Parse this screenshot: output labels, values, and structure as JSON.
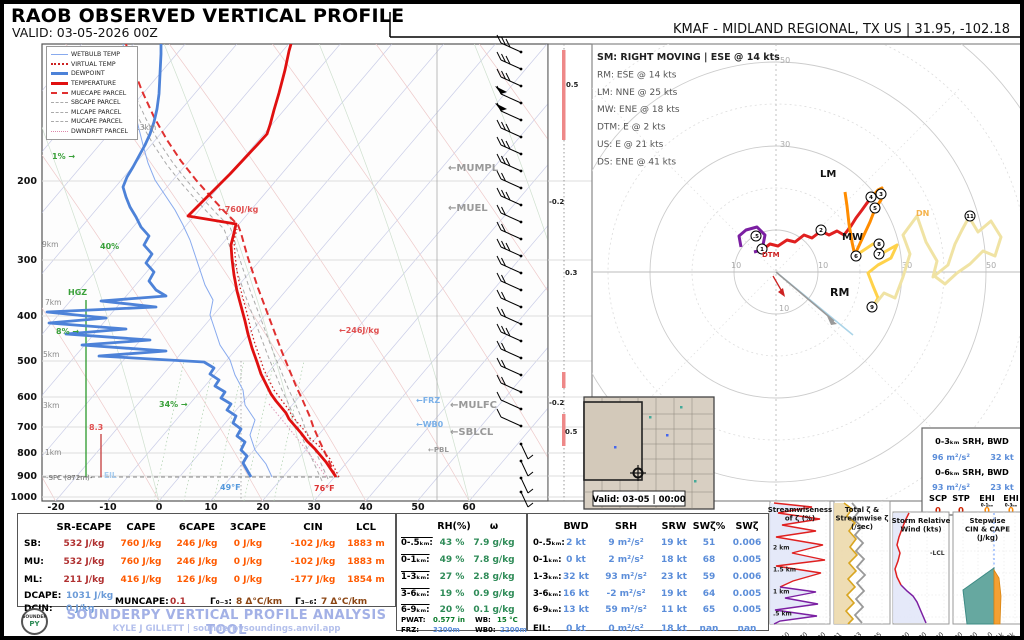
{
  "header": {
    "title": "RAOB OBSERVED VERTICAL PROFILE",
    "valid": "VALID: 03-05-2026 00Z",
    "station": "KMAF - MIDLAND REGIONAL, TX US | 31.95, -102.18"
  },
  "legend": {
    "items": [
      "WETBULB TEMP",
      "VIRTUAL TEMP",
      "DEWPOINT",
      "TEMPERATURE",
      "MUECAPE PARCEL",
      "SBCAPE PARCEL",
      "MLCAPE PARCEL",
      "MUCAPE PARCEL",
      "DWNDRFT PARCEL"
    ]
  },
  "skewt": {
    "pressure_ticks": [
      "200",
      "300",
      "400",
      "500",
      "600",
      "700",
      "800",
      "900",
      "1000"
    ],
    "temp_ticks": [
      "-20",
      "-10",
      "0",
      "10",
      "20",
      "30",
      "40",
      "50",
      "60"
    ],
    "height_labels": [
      "13km",
      "9km",
      "7km",
      "5km",
      "3km",
      "1km"
    ],
    "surface_label": "-SFC (872m)-",
    "eil_label": "EIL",
    "omega_labels": [
      "0.5",
      "-0.2",
      "0.3",
      "-0.2",
      "0.5"
    ],
    "annotations": {
      "rh1": "1% →",
      "rh40": "40%",
      "rh8": "8% →",
      "rh34": "34% →",
      "hgz": "HGZ",
      "dcape": "8.3",
      "mumpl": "←MUMPL",
      "muel": "←MUEL",
      "mulfc": "←MULFC",
      "sblcl": "←SBLCL",
      "frz": "←FRZ",
      "wb0": "←WB0",
      "pbl": "←PBL",
      "cape_total": "←760J/kg",
      "cape_6": "←246J/kg",
      "sfc_t": "76°F",
      "sfc_td": "49°F"
    }
  },
  "hodograph": {
    "info_lines": [
      "SM: RIGHT MOVING | ESE @ 14 kts",
      "RM: ESE @ 14 kts",
      "LM: NNE @ 25 kts",
      "MW: ENE @ 18 kts",
      "DTM: E @ 2 kts",
      "US: E @ 21 kts",
      "DS: ENE @ 41 kts"
    ],
    "ring_labels": [
      "50",
      "30",
      "10",
      "10",
      "30",
      "50",
      "10"
    ],
    "markers": [
      ".5",
      "1",
      "2",
      "3",
      "4",
      "5",
      "6",
      "7",
      "8",
      "9",
      "11"
    ],
    "labels": {
      "lm": "LM",
      "mw": "MW",
      "rm": "RM",
      "dtm": "DTM",
      "dn": "DN"
    }
  },
  "srh_box": {
    "line1": "0-3ₖₘ SRH,  BWD",
    "vals1": [
      "96 m²/s²",
      "32 kt"
    ],
    "line2": "0-6ₖₘ SRH,  BWD",
    "vals2": [
      "93 m²/s²",
      "23 kt"
    ],
    "headers": [
      "SCP",
      "STP",
      "EHI",
      "EHI"
    ],
    "subheaders": [
      "",
      "",
      "0-1ₖₘ",
      "0-3ₖₘ"
    ],
    "values": [
      "0",
      "0",
      "0",
      "0"
    ]
  },
  "thermo": {
    "headers": [
      "SR-ECAPE",
      "CAPE",
      "6CAPE",
      "3CAPE",
      "CIN",
      "LCL"
    ],
    "rows": [
      {
        "label": "SB:",
        "values": [
          "532 J/kg",
          "760 J/kg",
          "246 J/kg",
          "0 J/kg",
          "-102 J/kg",
          "1883 m"
        ]
      },
      {
        "label": "MU:",
        "values": [
          "532 J/kg",
          "760 J/kg",
          "246 J/kg",
          "0 J/kg",
          "-102 J/kg",
          "1883 m"
        ]
      },
      {
        "label": "ML:",
        "values": [
          "211 J/kg",
          "416 J/kg",
          "126 J/kg",
          "0 J/kg",
          "-177 J/kg",
          "1854 m"
        ]
      }
    ],
    "dcape_label": "DCAPE:",
    "dcape": "1031 J/kg",
    "dcin_label": "DCIN:",
    "dcin": "0 J/kg",
    "muncape_label": "MUNCAPE:",
    "muncape": "0.1",
    "lr1_label": "Γ₀₋₃:",
    "lr1": "8 Δ°C/km",
    "lr2_label": "Γ₃₋₆:",
    "lr2": "7 Δ°C/km"
  },
  "moisture": {
    "headers": [
      "RH(%)",
      "ω"
    ],
    "rows": [
      {
        "label": "0-.5ₖₘ:",
        "rh": "43 %",
        "w": "7.9 g/kg"
      },
      {
        "label": "0-1ₖₘ:",
        "rh": "49 %",
        "w": "7.8 g/kg"
      },
      {
        "label": "1-3ₖₘ:",
        "rh": "27 %",
        "w": "2.8 g/kg"
      },
      {
        "label": "3-6ₖₘ:",
        "rh": "19 %",
        "w": "0.9 g/kg"
      },
      {
        "label": "6-9ₖₘ:",
        "rh": "20 %",
        "w": "0.1 g/kg"
      }
    ],
    "pwat_label": "PWAT:",
    "pwat": "0.577 in",
    "wb_label": "WB:",
    "wb": "15 °C",
    "frz_label": "FRZ:",
    "frz": "3200m",
    "wb0_label": "WB0:",
    "wb0": "2200m"
  },
  "kinematics": {
    "headers": [
      "BWD",
      "SRH",
      "SRW",
      "SWζ%",
      "SWζ"
    ],
    "rows": [
      {
        "label": "0-.5ₖₘ:",
        "v": [
          "2 kt",
          "9 m²/s²",
          "19 kt",
          "51",
          "0.006"
        ]
      },
      {
        "label": "0-1ₖₘ:",
        "v": [
          "0 kt",
          "2 m²/s²",
          "18 kt",
          "68",
          "0.005"
        ]
      },
      {
        "label": "1-3ₖₘ:",
        "v": [
          "32 kt",
          "93 m²/s²",
          "23 kt",
          "59",
          "0.006"
        ]
      },
      {
        "label": "3-6ₖₘ:",
        "v": [
          "16 kt",
          "-2 m²/s²",
          "19 kt",
          "64",
          "0.005"
        ]
      },
      {
        "label": "6-9ₖₘ:",
        "v": [
          "13 kt",
          "59 m²/s²",
          "11 kt",
          "65",
          "0.005"
        ]
      },
      {
        "label": "EIL:",
        "v": [
          "0 kt",
          "0 m²/s²",
          "18 kt",
          "nan",
          "nan"
        ]
      }
    ]
  },
  "map_inset": {
    "valid": "Valid: 03-05 | 00:00"
  },
  "panels": [
    {
      "title_lines": [
        "Streamwiseness",
        "of ζ (%)"
      ],
      "ticks": [
        "50",
        "70",
        "90"
      ],
      "heights": [
        "2 km",
        "1.5 km",
        "1 km",
        ".5 km"
      ],
      "extra": ""
    },
    {
      "title_lines": [
        "Total ζ &",
        "Streamwise ζ",
        "(/sec)"
      ],
      "ticks": [
        ".01",
        ".03",
        ".05"
      ],
      "heights": [],
      "extra": ""
    },
    {
      "title_lines": [
        "Storm Relative",
        "Wind (kts)"
      ],
      "ticks": [
        "20",
        "30",
        "40"
      ],
      "heights": [],
      "extra": "-LCL"
    },
    {
      "title_lines": [
        "Stepwise",
        "CIN & CAPE",
        "(J/kg)"
      ],
      "ticks": [
        "-200",
        "-100",
        "0",
        "1k",
        "2k"
      ],
      "heights": [],
      "extra": ""
    }
  ],
  "footer": {
    "brand_a": "SOUNDER",
    "brand_b": "PY",
    "line1": "SOUNDERPY VERTICAL PROFILE ANALYSIS TOOL",
    "line2": "KYLE J GILLETT | sounderpysoundings.anvil.app"
  },
  "chart_data": {
    "type": "skewt_hodograph_composite",
    "station": "KMAF - MIDLAND REGIONAL, TX US",
    "location": [
      31.95,
      -102.18
    ],
    "valid": "03-05-2026 00Z",
    "surface": {
      "temp_f": 76,
      "dewpoint_f": 49,
      "station_pressure_label": "SFC (872m)"
    },
    "thermo_indices": {
      "layers": [
        "SB",
        "MU",
        "ML"
      ],
      "SR_ECAPE_Jkg": [
        532,
        532,
        211
      ],
      "CAPE_Jkg": [
        760,
        760,
        416
      ],
      "CAPE6_Jkg": [
        246,
        246,
        126
      ],
      "CAPE3_Jkg": [
        0,
        0,
        0
      ],
      "CIN_Jkg": [
        -102,
        -102,
        -177
      ],
      "LCL_m": [
        1883,
        1883,
        1854
      ],
      "DCAPE_Jkg": 1031,
      "DCIN_Jkg": 0,
      "MUNCAPE": 0.1,
      "lapse_rate_0_3km_CperKm": 8,
      "lapse_rate_3_6km_CperKm": 7
    },
    "moisture": {
      "layers": [
        "0-0.5km",
        "0-1km",
        "1-3km",
        "3-6km",
        "6-9km"
      ],
      "rh_pct": [
        43,
        49,
        27,
        19,
        20
      ],
      "mixing_ratio_gkg": [
        7.9,
        7.8,
        2.8,
        0.9,
        0.1
      ],
      "pwat_in": 0.577,
      "wetbulb_sfc_c": 15,
      "freezing_level_m": 3200,
      "wb0_m": 2200
    },
    "kinematics": {
      "layers": [
        "0-0.5km",
        "0-1km",
        "1-3km",
        "3-6km",
        "6-9km",
        "EIL"
      ],
      "bwd_kt": [
        2,
        0,
        32,
        16,
        13,
        0
      ],
      "srh_m2s2": [
        9,
        2,
        93,
        -2,
        59,
        0
      ],
      "srw_kt": [
        19,
        18,
        23,
        19,
        11,
        18
      ],
      "sw_zeta_pct": [
        51,
        68,
        59,
        64,
        65,
        null
      ],
      "sw_zeta_per_sec": [
        0.006,
        0.005,
        0.006,
        0.005,
        0.005,
        null
      ],
      "srh_0_3km_m2s2": 96,
      "bwd_0_3km_kt": 32,
      "srh_0_6km_m2s2": 93,
      "bwd_0_6km_kt": 23,
      "scp": 0,
      "stp": 0,
      "ehi_0_1km": 0,
      "ehi_0_3km": 0
    },
    "storm_motions": {
      "SM": "RIGHT MOVING | ESE @ 14 kts",
      "RM": "ESE @ 14 kts",
      "LM": "NNE @ 25 kts",
      "MW": "ENE @ 18 kts",
      "DTM": "E @ 2 kts",
      "US": "E @ 21 kts",
      "DS": "ENE @ 41 kts"
    },
    "skewt_axes": {
      "pressure_hpa": [
        200,
        300,
        400,
        500,
        600,
        700,
        800,
        900,
        1000
      ],
      "temp_c_ticks": [
        -20,
        -10,
        0,
        10,
        20,
        30,
        40,
        50,
        60
      ]
    },
    "profile_estimate": {
      "pressure_hpa": [
        910,
        850,
        700,
        500,
        400,
        300,
        250,
        200,
        150,
        100
      ],
      "temp_c": [
        24,
        19,
        8,
        -8,
        -20,
        -36,
        -46,
        -57,
        -50,
        -42
      ],
      "dewpoint_c": [
        9,
        2,
        -12,
        -38,
        -52,
        -48,
        -60,
        -65,
        -70,
        -75
      ]
    }
  }
}
